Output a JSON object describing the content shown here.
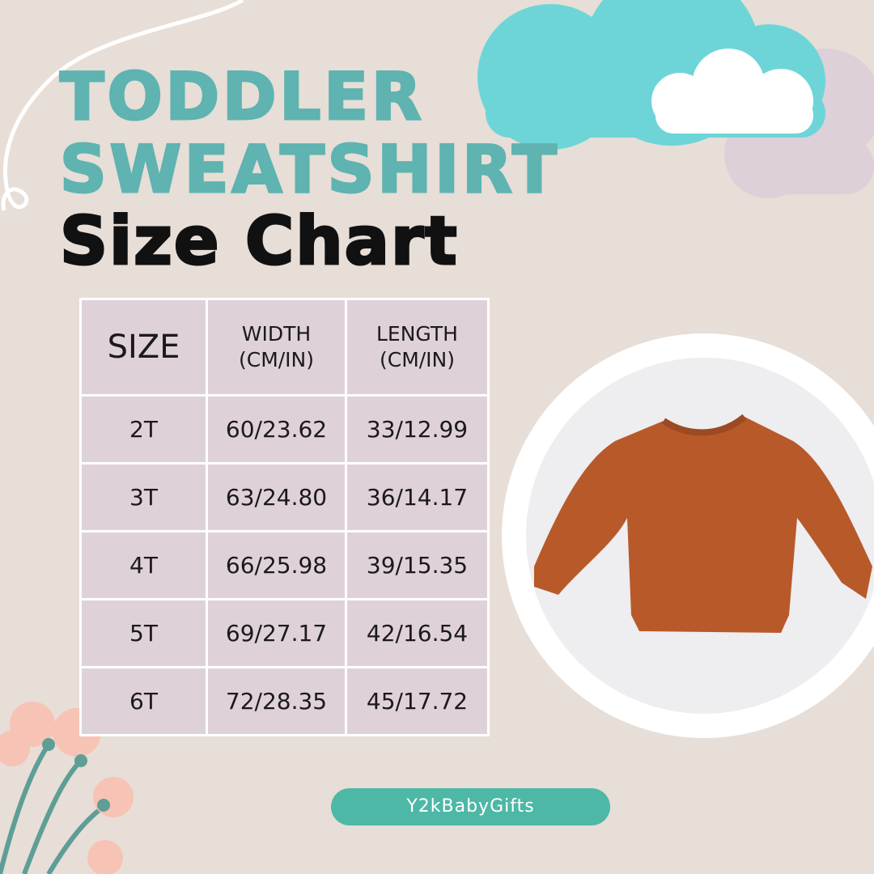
{
  "title": {
    "line1": "TODDLER",
    "line2": "SWEATSHIRT",
    "line3": "Size Chart"
  },
  "table": {
    "headers": [
      {
        "line1": "SIZE",
        "line2": ""
      },
      {
        "line1": "WIDTH",
        "line2": "(CM/IN)"
      },
      {
        "line1": "LENGTH",
        "line2": "(CM/IN)"
      }
    ],
    "rows": [
      [
        "2T",
        "60/23.62",
        "33/12.99"
      ],
      [
        "3T",
        "63/24.80",
        "36/14.17"
      ],
      [
        "4T",
        "66/25.98",
        "39/15.35"
      ],
      [
        "5T",
        "69/27.17",
        "42/16.54"
      ],
      [
        "6T",
        "72/28.35",
        "45/17.72"
      ]
    ]
  },
  "badge": {
    "label": "Y2kBabyGifts"
  },
  "colors": {
    "background": "#e6ded7",
    "title_teal": "#5fb3b0",
    "cell": "#dfd1d9",
    "cloud_teal": "#6dd5d8",
    "cloud_lavender": "#ddd0d8",
    "badge": "#4db8a6",
    "sweatshirt": "#b8592a",
    "flower": "#f7c3b4"
  },
  "image": {
    "icon": "orange-sweatshirt-photo"
  }
}
